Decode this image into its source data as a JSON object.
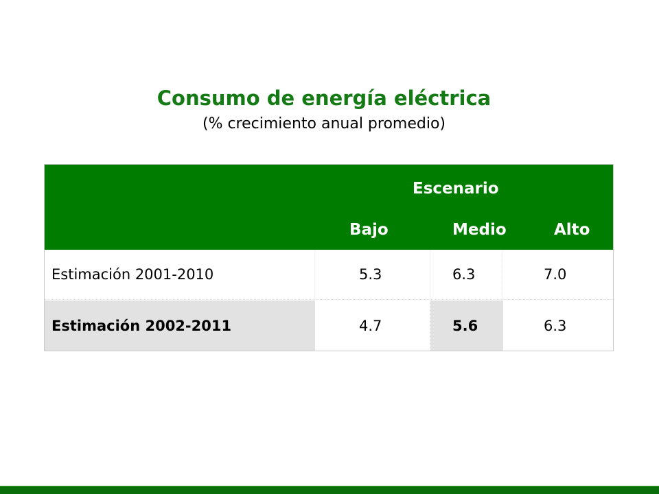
{
  "title": "Consumo de energía eléctrica",
  "subtitle": "(% crecimiento anual promedio)",
  "table": {
    "group_header": "Escenario",
    "columns": [
      "Bajo",
      "Medio",
      "Alto"
    ],
    "rows": [
      {
        "label": "Estimación 2001-2010",
        "values": [
          "5.3",
          "6.3",
          "7.0"
        ]
      },
      {
        "label": "Estimación 2002-2011",
        "values": [
          "4.7",
          "5.6",
          "6.3"
        ]
      }
    ]
  },
  "colors": {
    "title": "#137a14",
    "header_bg": "#007c00",
    "highlight_bg": "#e2e2e2",
    "bottom_bar": "#0a6f0a"
  }
}
